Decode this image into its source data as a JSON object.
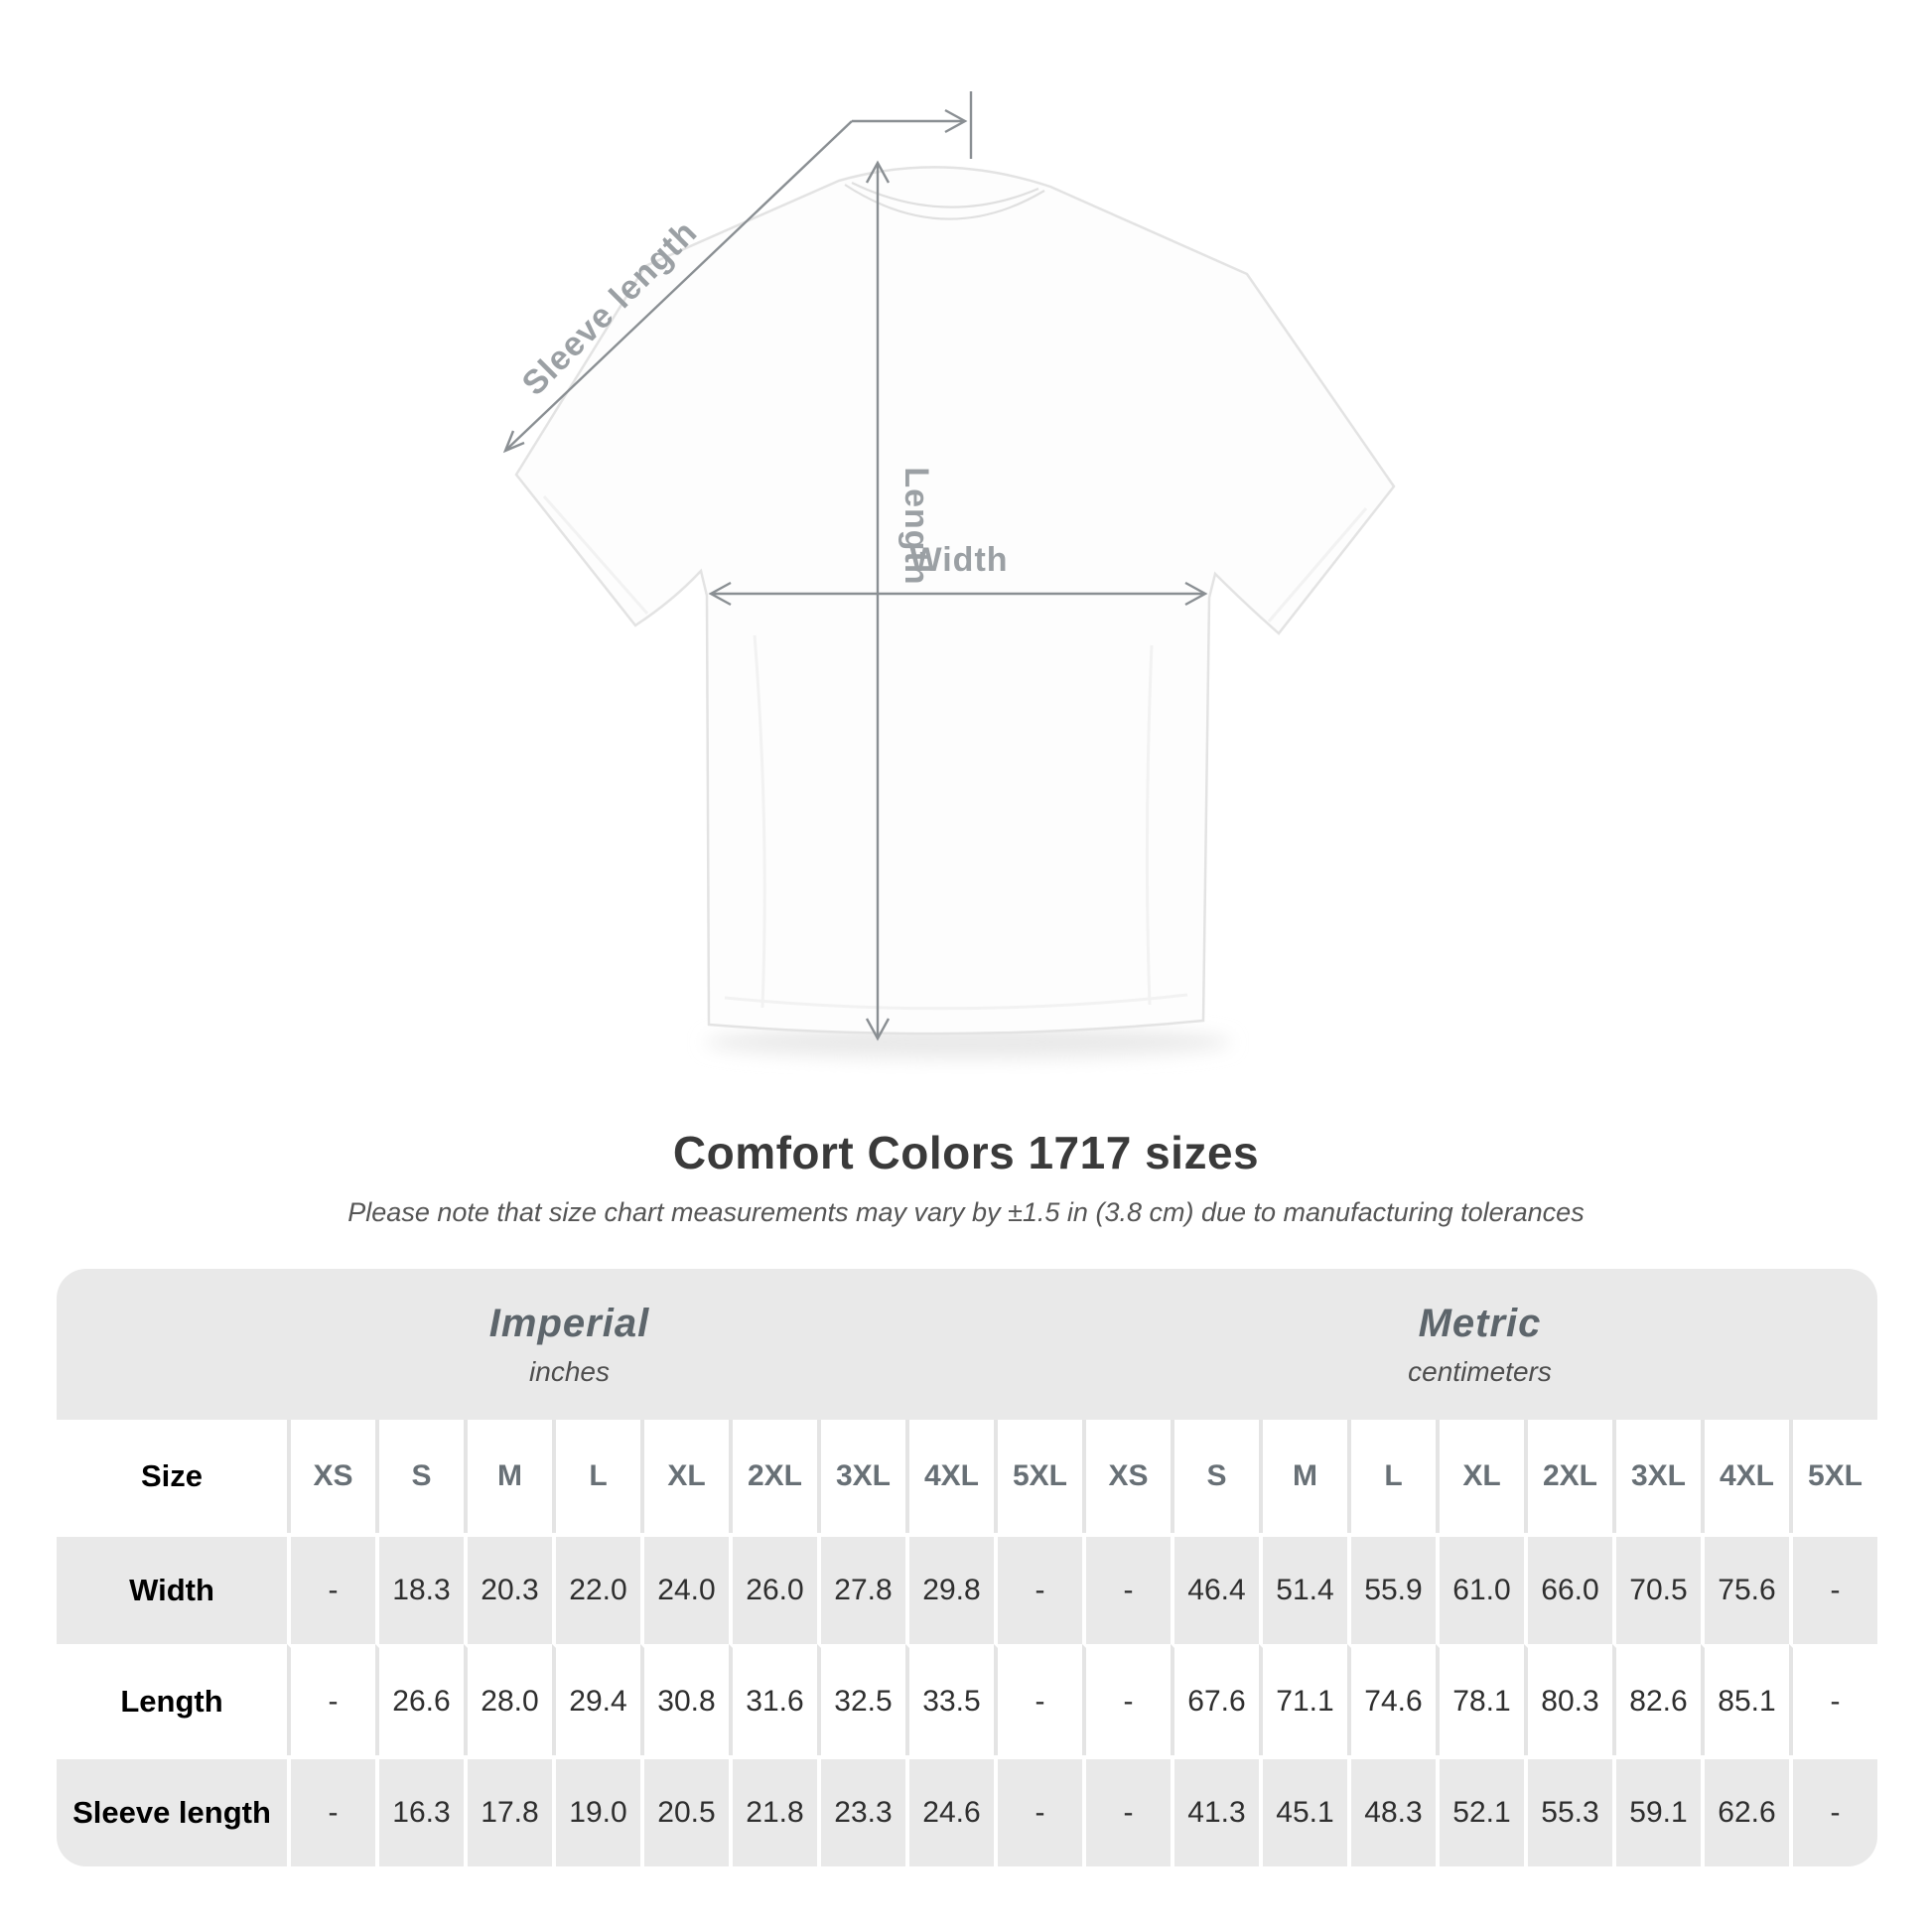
{
  "header": {
    "title": "Comfort Colors 1717 sizes",
    "subtitle": "Please note that size chart measurements may vary by ±1.5 in (3.8 cm) due to manufacturing tolerances"
  },
  "diagram": {
    "labels": {
      "sleeve": "Sleeve length",
      "length": "Length",
      "width": "Width"
    },
    "arrow_color": "#8a8f93",
    "label_color": "#9ba0a4"
  },
  "table": {
    "size_header_label": "Size",
    "sizes": [
      "XS",
      "S",
      "M",
      "L",
      "XL",
      "2XL",
      "3XL",
      "4XL",
      "5XL"
    ],
    "unit_groups": [
      {
        "label": "Imperial",
        "sublabel": "inches"
      },
      {
        "label": "Metric",
        "sublabel": "centimeters"
      }
    ],
    "rows": [
      {
        "label": "Width",
        "imperial": [
          "-",
          "18.3",
          "20.3",
          "22.0",
          "24.0",
          "26.0",
          "27.8",
          "29.8",
          "-"
        ],
        "metric": [
          "-",
          "46.4",
          "51.4",
          "55.9",
          "61.0",
          "66.0",
          "70.5",
          "75.6",
          "-"
        ]
      },
      {
        "label": "Length",
        "imperial": [
          "-",
          "26.6",
          "28.0",
          "29.4",
          "30.8",
          "31.6",
          "32.5",
          "33.5",
          "-"
        ],
        "metric": [
          "-",
          "67.6",
          "71.1",
          "74.6",
          "78.1",
          "80.3",
          "82.6",
          "85.1",
          "-"
        ]
      },
      {
        "label": "Sleeve length",
        "imperial": [
          "-",
          "16.3",
          "17.8",
          "19.0",
          "20.5",
          "21.8",
          "23.3",
          "24.6",
          "-"
        ],
        "metric": [
          "-",
          "41.3",
          "45.1",
          "48.3",
          "52.1",
          "55.3",
          "59.1",
          "62.6",
          "-"
        ]
      }
    ],
    "colors": {
      "band_bg": "#e9e9e9",
      "gray_row_bg": "#e9e9e9",
      "header_text": "#5d656b",
      "label_text": "#687076",
      "value_text": "#2e2e2e"
    }
  },
  "chart_data": {
    "type": "table",
    "title": "Comfort Colors 1717 sizes",
    "note": "Measurements may vary by ±1.5 in (3.8 cm) due to manufacturing tolerances",
    "unit_groups": [
      "Imperial (inches)",
      "Metric (centimeters)"
    ],
    "sizes": [
      "XS",
      "S",
      "M",
      "L",
      "XL",
      "2XL",
      "3XL",
      "4XL",
      "5XL"
    ],
    "rows": [
      {
        "measurement": "Width",
        "imperial_in": [
          null,
          18.3,
          20.3,
          22.0,
          24.0,
          26.0,
          27.8,
          29.8,
          null
        ],
        "metric_cm": [
          null,
          46.4,
          51.4,
          55.9,
          61.0,
          66.0,
          70.5,
          75.6,
          null
        ]
      },
      {
        "measurement": "Length",
        "imperial_in": [
          null,
          26.6,
          28.0,
          29.4,
          30.8,
          31.6,
          32.5,
          33.5,
          null
        ],
        "metric_cm": [
          null,
          67.6,
          71.1,
          74.6,
          78.1,
          80.3,
          82.6,
          85.1,
          null
        ]
      },
      {
        "measurement": "Sleeve length",
        "imperial_in": [
          null,
          16.3,
          17.8,
          19.0,
          20.5,
          21.8,
          23.3,
          24.6,
          null
        ],
        "metric_cm": [
          null,
          41.3,
          45.1,
          48.3,
          52.1,
          55.3,
          59.1,
          62.6,
          null
        ]
      }
    ]
  }
}
